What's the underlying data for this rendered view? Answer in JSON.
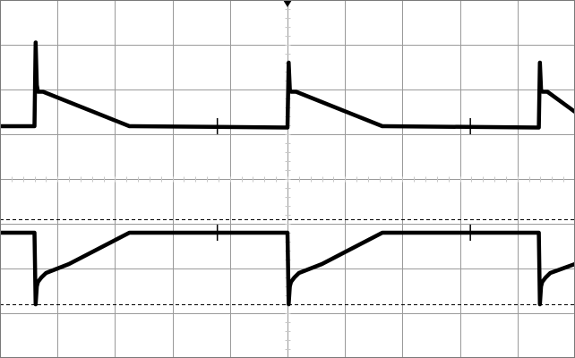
{
  "chart_data": {
    "type": "line",
    "title": "",
    "xlabel": "",
    "ylabel": "",
    "grid": true,
    "x_divisions": 10,
    "y_divisions": 8,
    "xlim": [
      0,
      10
    ],
    "ylim": [
      -4,
      4
    ],
    "trigger_marker_x": 5.0,
    "colors": {
      "background": "#ffffff",
      "grid": "#9a9a9a",
      "trace": "#000000"
    },
    "reference_levels": [
      {
        "name": "",
        "y": -0.9,
        "style": "dashed"
      },
      {
        "name": "",
        "y": -2.8,
        "style": "dashed"
      }
    ],
    "series": [
      {
        "name": "",
        "x": [
          0,
          0.56,
          0.6,
          0.62,
          0.64,
          0.66,
          0.7,
          0.75,
          2.25,
          2.3,
          5.0,
          5.02,
          5.04,
          5.06,
          5.1,
          5.15,
          6.65,
          6.7,
          9.37,
          9.39,
          9.41,
          9.43,
          9.47,
          9.52,
          10.0
        ],
        "y": [
          1.18,
          1.18,
          1.18,
          3.05,
          2.1,
          1.95,
          1.95,
          1.95,
          1.18,
          1.18,
          1.15,
          2.6,
          2.0,
          1.95,
          1.95,
          1.95,
          1.18,
          1.18,
          1.15,
          2.6,
          2.0,
          1.95,
          1.95,
          1.95,
          1.5
        ],
        "glitches": [
          {
            "x": 3.78,
            "y": 1.18
          },
          {
            "x": 8.18,
            "y": 1.18
          }
        ]
      },
      {
        "name": "",
        "x": [
          0,
          0.56,
          0.6,
          0.62,
          0.64,
          0.66,
          0.72,
          0.8,
          1.2,
          2.25,
          2.3,
          5.0,
          5.02,
          5.04,
          5.06,
          5.12,
          5.2,
          5.6,
          6.65,
          6.7,
          9.37,
          9.39,
          9.41,
          9.43,
          9.49,
          9.57,
          10.0
        ],
        "y": [
          -1.2,
          -1.2,
          -1.2,
          -2.8,
          -2.4,
          -2.3,
          -2.2,
          -2.1,
          -1.9,
          -1.2,
          -1.2,
          -1.2,
          -2.8,
          -2.4,
          -2.3,
          -2.2,
          -2.1,
          -1.9,
          -1.2,
          -1.2,
          -1.2,
          -2.8,
          -2.4,
          -2.3,
          -2.2,
          -2.1,
          -1.9
        ],
        "glitches": [
          {
            "x": 3.78,
            "y": -1.2
          },
          {
            "x": 8.18,
            "y": -1.2
          }
        ]
      }
    ]
  }
}
